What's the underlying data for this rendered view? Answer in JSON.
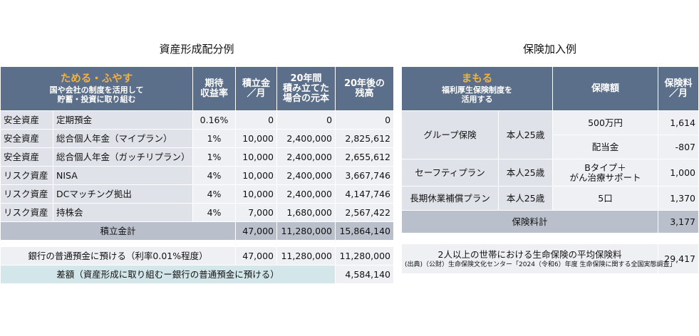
{
  "left_title": "資産形成配分例",
  "right_title": "保険加入例",
  "left_table": {
    "header": {
      "highlight": "ためる・ふやす",
      "desc1": "国や会社の制度を活用して",
      "desc2": "貯蓄・投資に取り組む",
      "col_rate1": "期待",
      "col_rate2": "収益率",
      "col_monthly1": "積立金",
      "col_monthly2": "／月",
      "col_principal1": "20年間",
      "col_principal2": "積み立てた",
      "col_principal3": "場合の元本",
      "col_balance1": "20年後の",
      "col_balance2": "残高"
    },
    "rows": [
      {
        "category": "安全資産",
        "product": "定期預金",
        "rate": "0.16%",
        "monthly": "0",
        "principal": "0",
        "balance": "0"
      },
      {
        "category": "安全資産",
        "product": "総合個人年金（マイプラン）",
        "rate": "1%",
        "monthly": "10,000",
        "principal": "2,400,000",
        "balance": "2,825,612"
      },
      {
        "category": "安全資産",
        "product": "総合個人年金（ガッチリプラン）",
        "rate": "1%",
        "monthly": "10,000",
        "principal": "2,400,000",
        "balance": "2,655,612"
      },
      {
        "category": "リスク資産",
        "product": "NISA",
        "rate": "4%",
        "monthly": "10,000",
        "principal": "2,400,000",
        "balance": "3,667,746"
      },
      {
        "category": "リスク資産",
        "product": "DCマッチング拠出",
        "rate": "4%",
        "monthly": "10,000",
        "principal": "2,400,000",
        "balance": "4,147,746"
      },
      {
        "category": "リスク資産",
        "product": "持株会",
        "rate": "4%",
        "monthly": "7,000",
        "principal": "1,680,000",
        "balance": "2,567,422"
      }
    ],
    "total": {
      "label": "積立金計",
      "monthly": "47,000",
      "principal": "11,280,000",
      "balance": "15,864,140"
    },
    "bank": {
      "label": "銀行の普通預金に預ける（利率0.01%程度）",
      "monthly": "47,000",
      "principal": "11,280,000",
      "balance": "11,280,000"
    },
    "diff": {
      "label": "差額（資産形成に取り組むー銀行の普通預金に預ける）",
      "value": "4,584,140"
    }
  },
  "right_table": {
    "header": {
      "highlight": "まもる",
      "desc1": "福利厚生保険制度を",
      "desc2": "活用する",
      "col_coverage": "保障額",
      "col_premium1": "保険料",
      "col_premium2": "／月"
    },
    "group": {
      "name": "グループ保険",
      "insured": "本人25歳",
      "r1_coverage": "500万円",
      "r1_premium": "1,614",
      "r2_coverage": "配当金",
      "r2_premium": "-807"
    },
    "safety": {
      "name": "セーフティプラン",
      "insured": "本人25歳",
      "coverage1": "Bタイプ＋",
      "coverage2": "がん治療サポート",
      "premium": "1,000"
    },
    "longterm": {
      "name": "長期休業補償プラン",
      "insured": "本人25歳",
      "coverage": "5口",
      "premium": "1,370"
    },
    "total": {
      "label": "保険料計",
      "premium": "3,177"
    },
    "avg": {
      "label": "2人以上の世帯における生命保険の平均保険料",
      "source": "(出典)（公財）生命保険文化センター「2024（令和6）年度 生命保険に関する全国実態調査」",
      "value": "29,417"
    }
  }
}
